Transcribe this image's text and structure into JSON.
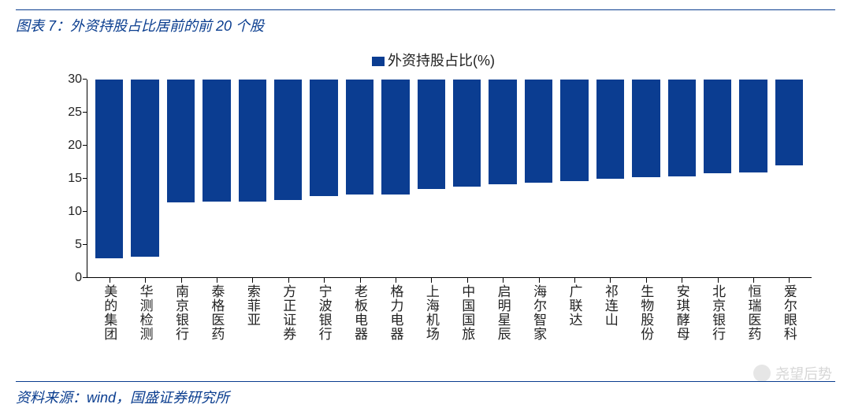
{
  "title": "图表 7：外资持股占比居前的前 20 个股",
  "source_prefix": "资料来源：",
  "source_text": "wind，国盛证券研究所",
  "legend_label": "外资持股占比(%)",
  "watermark": "尧望后势",
  "chart": {
    "type": "bar",
    "bar_color": "#0b3d91",
    "axis_color": "#000000",
    "text_color": "#222222",
    "title_color": "#0a3d8f",
    "background_color": "#ffffff",
    "ylim": [
      0,
      30
    ],
    "ytick_step": 5,
    "yticks": [
      0,
      5,
      10,
      15,
      20,
      25,
      30
    ],
    "bar_width_ratio": 0.78,
    "categories": [
      "美的集团",
      "华测检测",
      "南京银行",
      "泰格医药",
      "索菲亚",
      "方正证券",
      "宁波银行",
      "老板电器",
      "格力电器",
      "上海机场",
      "中国国旅",
      "启明星辰",
      "海尔智家",
      "广联达",
      "祁连山",
      "生物股份",
      "安琪酵母",
      "北京银行",
      "恒瑞医药",
      "爱尔眼科"
    ],
    "values": [
      27.0,
      26.8,
      18.6,
      18.4,
      18.4,
      18.2,
      17.6,
      17.4,
      17.4,
      16.6,
      16.2,
      15.8,
      15.6,
      15.4,
      15.0,
      14.8,
      14.6,
      14.2,
      14.0,
      13.0
    ]
  }
}
